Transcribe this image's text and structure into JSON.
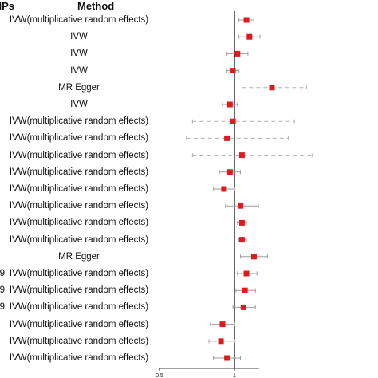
{
  "header": {
    "snps_label": "SNPs",
    "method_label": "Method"
  },
  "colors": {
    "point": "#e31a1c",
    "ci": "#9e9e9e",
    "ci_dashed": "#b0b0b0",
    "axis": "#000000",
    "ref_line": "#000000"
  },
  "chart_data": {
    "type": "forest",
    "xlim": [
      0.5,
      1.1
    ],
    "reference_line": 1,
    "x_ticks": [
      "0.5",
      "1"
    ],
    "grid": false,
    "rows": [
      {
        "snps": "",
        "method": "IVW(multiplicative random effects)",
        "or": 1.08,
        "lower": 1.03,
        "upper": 1.13,
        "dashed": false
      },
      {
        "snps": "",
        "method": "IVW",
        "or": 1.1,
        "lower": 1.03,
        "upper": 1.17,
        "dashed": false
      },
      {
        "snps": "",
        "method": "IVW",
        "or": 1.02,
        "lower": 0.95,
        "upper": 1.09,
        "dashed": false
      },
      {
        "snps": "",
        "method": "IVW",
        "or": 0.99,
        "lower": 0.95,
        "upper": 1.03,
        "dashed": false
      },
      {
        "snps": "",
        "method": "MR Egger",
        "or": 1.25,
        "lower": 1.05,
        "upper": 1.48,
        "dashed": true
      },
      {
        "snps": "",
        "method": "IVW",
        "or": 0.97,
        "lower": 0.92,
        "upper": 1.02,
        "dashed": false
      },
      {
        "snps": "",
        "method": "IVW(multiplicative random effects)",
        "or": 0.99,
        "lower": 0.72,
        "upper": 1.4,
        "dashed": true
      },
      {
        "snps": "",
        "method": "IVW(multiplicative random effects)",
        "or": 0.95,
        "lower": 0.68,
        "upper": 1.36,
        "dashed": true
      },
      {
        "snps": "",
        "method": "IVW(multiplicative random effects)",
        "or": 1.05,
        "lower": 0.72,
        "upper": 1.52,
        "dashed": true
      },
      {
        "snps": "",
        "method": "IVW(multiplicative random effects)",
        "or": 0.97,
        "lower": 0.9,
        "upper": 1.04,
        "dashed": false
      },
      {
        "snps": "",
        "method": "IVW(multiplicative random effects)",
        "or": 0.93,
        "lower": 0.86,
        "upper": 1.0,
        "dashed": false
      },
      {
        "snps": "",
        "method": "IVW(multiplicative random effects)",
        "or": 1.04,
        "lower": 0.94,
        "upper": 1.16,
        "dashed": false
      },
      {
        "snps": "",
        "method": "IVW(multiplicative random effects)",
        "or": 1.05,
        "lower": 1.02,
        "upper": 1.08,
        "dashed": false
      },
      {
        "snps": "",
        "method": "IVW(multiplicative random effects)",
        "or": 1.05,
        "lower": 1.03,
        "upper": 1.08,
        "dashed": false
      },
      {
        "snps": "",
        "method": "MR Egger",
        "or": 1.13,
        "lower": 1.04,
        "upper": 1.22,
        "dashed": false
      },
      {
        "snps": "9",
        "method": "IVW(multiplicative random effects)",
        "or": 1.08,
        "lower": 1.02,
        "upper": 1.15,
        "dashed": false
      },
      {
        "snps": "9",
        "method": "IVW(multiplicative random effects)",
        "or": 1.07,
        "lower": 1.01,
        "upper": 1.14,
        "dashed": false
      },
      {
        "snps": "9",
        "method": "IVW(multiplicative random effects)",
        "or": 1.06,
        "lower": 0.99,
        "upper": 1.14,
        "dashed": false
      },
      {
        "snps": "",
        "method": "IVW(multiplicative random effects)",
        "or": 0.92,
        "lower": 0.84,
        "upper": 1.0,
        "dashed": false
      },
      {
        "snps": "",
        "method": "IVW(multiplicative random effects)",
        "or": 0.91,
        "lower": 0.83,
        "upper": 1.0,
        "dashed": false
      },
      {
        "snps": "",
        "method": "IVW(multiplicative random effects)",
        "or": 0.95,
        "lower": 0.86,
        "upper": 1.04,
        "dashed": false
      }
    ]
  }
}
